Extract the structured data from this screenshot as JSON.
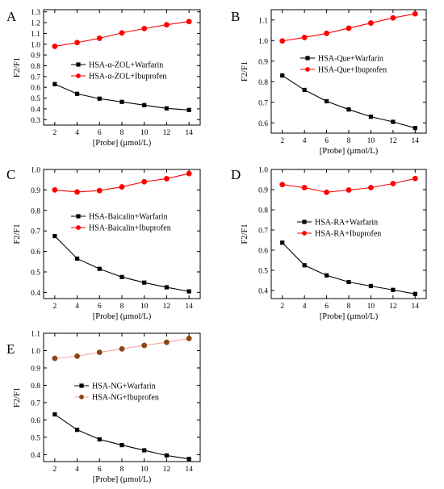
{
  "chart_data": [
    {
      "panel": "A",
      "type": "line",
      "x": [
        2,
        4,
        6,
        8,
        10,
        12,
        14
      ],
      "xticks": [
        "2",
        "4",
        "6",
        "8",
        "10",
        "12",
        "14"
      ],
      "xlim": [
        1,
        15
      ],
      "ylim": [
        0.25,
        1.32
      ],
      "yticks": [
        "0.3",
        "0.4",
        "0.5",
        "0.6",
        "0.7",
        "0.8",
        "0.9",
        "1.0",
        "1.1",
        "1.2",
        "1.3"
      ],
      "ytick_values": [
        0.3,
        0.4,
        0.5,
        0.6,
        0.7,
        0.8,
        0.9,
        1.0,
        1.1,
        1.2,
        1.3
      ],
      "xlabel": "[Probe] (μmol/L)",
      "ylabel": "F2/F1",
      "legend_position": "middle-right",
      "series": [
        {
          "name": "HSA-α-ZOL+Warfarin",
          "marker": "square",
          "color": "#000000",
          "values": [
            0.63,
            0.54,
            0.495,
            0.465,
            0.435,
            0.405,
            0.39
          ]
        },
        {
          "name": "HSA-α-ZOL+Ibuprofen",
          "marker": "circle",
          "color": "#ff0000",
          "values": [
            0.98,
            1.015,
            1.055,
            1.105,
            1.145,
            1.18,
            1.21
          ]
        }
      ]
    },
    {
      "panel": "B",
      "type": "line",
      "x": [
        2,
        4,
        6,
        8,
        10,
        12,
        14
      ],
      "xticks": [
        "2",
        "4",
        "6",
        "8",
        "10",
        "12",
        "14"
      ],
      "xlim": [
        1,
        15
      ],
      "ylim": [
        0.55,
        1.15
      ],
      "yticks": [
        "0.6",
        "0.7",
        "0.8",
        "0.9",
        "1.0",
        "1.1"
      ],
      "ytick_values": [
        0.6,
        0.7,
        0.8,
        0.9,
        1.0,
        1.1
      ],
      "xlabel": "[Probe] (μmol/L)",
      "ylabel": "F2/F1",
      "legend_position": "middle-right",
      "series": [
        {
          "name": "HSA-Que+Warfarin",
          "marker": "square",
          "color": "#000000",
          "values": [
            0.83,
            0.76,
            0.705,
            0.665,
            0.63,
            0.605,
            0.575
          ]
        },
        {
          "name": "HSA-Que+Ibuprofen",
          "marker": "circle",
          "color": "#ff0000",
          "values": [
            0.998,
            1.015,
            1.035,
            1.06,
            1.085,
            1.11,
            1.13
          ]
        }
      ]
    },
    {
      "panel": "C",
      "type": "line",
      "x": [
        2,
        4,
        6,
        8,
        10,
        12,
        14
      ],
      "xticks": [
        "2",
        "4",
        "6",
        "8",
        "10",
        "12",
        "14"
      ],
      "xlim": [
        1,
        15
      ],
      "ylim": [
        0.37,
        1.0
      ],
      "yticks": [
        "0.4",
        "0.5",
        "0.6",
        "0.7",
        "0.8",
        "0.9",
        "1.0"
      ],
      "ytick_values": [
        0.4,
        0.5,
        0.6,
        0.7,
        0.8,
        0.9,
        1.0
      ],
      "xlabel": "[Probe] (μmol/L)",
      "ylabel": "F2/F1",
      "legend_position": "middle-right",
      "series": [
        {
          "name": "HSA-Baicalin+Warfarin",
          "marker": "square",
          "color": "#000000",
          "values": [
            0.675,
            0.565,
            0.515,
            0.475,
            0.448,
            0.425,
            0.405
          ]
        },
        {
          "name": "HSA-Baicalin+Ibuprofen",
          "marker": "circle",
          "color": "#ff0000",
          "values": [
            0.9,
            0.89,
            0.897,
            0.915,
            0.94,
            0.955,
            0.98
          ]
        }
      ]
    },
    {
      "panel": "D",
      "type": "line",
      "x": [
        2,
        4,
        6,
        8,
        10,
        12,
        14
      ],
      "xticks": [
        "2",
        "4",
        "6",
        "8",
        "10",
        "12",
        "14"
      ],
      "xlim": [
        1,
        15
      ],
      "ylim": [
        0.36,
        1.0
      ],
      "yticks": [
        "0.4",
        "0.5",
        "0.6",
        "0.7",
        "0.8",
        "0.9",
        "1.0"
      ],
      "ytick_values": [
        0.4,
        0.5,
        0.6,
        0.7,
        0.8,
        0.9,
        1.0
      ],
      "xlabel": "[Probe] (μmol/L)",
      "ylabel": "F2/F1",
      "legend_position": "middle-right",
      "series": [
        {
          "name": "HSA-RA+Warfarin",
          "marker": "square",
          "color": "#000000",
          "values": [
            0.637,
            0.525,
            0.475,
            0.442,
            0.422,
            0.403,
            0.383
          ]
        },
        {
          "name": "HSA-RA+Ibuprofen",
          "marker": "circle",
          "color": "#ff0000",
          "values": [
            0.925,
            0.91,
            0.887,
            0.898,
            0.91,
            0.93,
            0.955
          ]
        }
      ]
    },
    {
      "panel": "E",
      "type": "line",
      "x": [
        2,
        4,
        6,
        8,
        10,
        12,
        14
      ],
      "xticks": [
        "2",
        "4",
        "6",
        "8",
        "10",
        "12",
        "14"
      ],
      "xlim": [
        1,
        15
      ],
      "ylim": [
        0.36,
        1.1
      ],
      "yticks": [
        "0.4",
        "0.5",
        "0.6",
        "0.7",
        "0.8",
        "0.9",
        "1.0",
        "1.1"
      ],
      "ytick_values": [
        0.4,
        0.5,
        0.6,
        0.7,
        0.8,
        0.9,
        1.0,
        1.1
      ],
      "xlabel": "[Probe] (μmol/L)",
      "ylabel": "F2/F1",
      "legend_position": "middle-right",
      "series": [
        {
          "name": "HSA-NG+Warfarin",
          "marker": "square",
          "color": "#000000",
          "values": [
            0.632,
            0.543,
            0.488,
            0.455,
            0.425,
            0.395,
            0.375
          ]
        },
        {
          "name": "HSA-NG+Ibuprofen",
          "marker": "circle",
          "color": "#8b4513",
          "line_color": "#f4a6a6",
          "values": [
            0.955,
            0.968,
            0.99,
            1.01,
            1.03,
            1.048,
            1.07
          ]
        }
      ]
    }
  ]
}
